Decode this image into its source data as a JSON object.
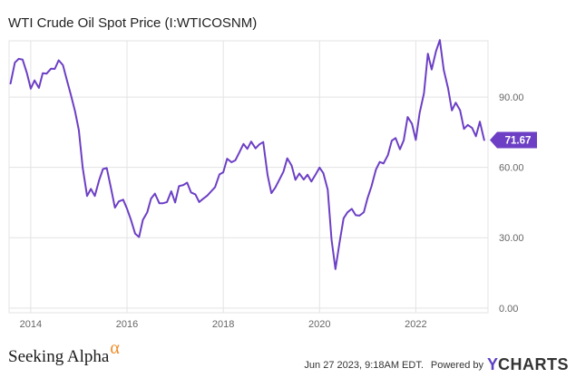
{
  "title": "WTI Crude Oil Spot Price (I:WTICOSNM)",
  "footer": {
    "brand": "Seeking Alpha",
    "brand_mark": "α",
    "timestamp": "Jun 27 2023, 9:18AM EDT.",
    "powered_by": "Powered by",
    "logo_y": "Y",
    "logo_rest": "CHARTS"
  },
  "colors": {
    "line": "#6c3fc5",
    "grid": "#e3e3e3",
    "axis_text": "#666666",
    "last_value_bg": "#6c3fc5"
  },
  "chart_data": {
    "type": "line",
    "title": "WTI Crude Oil Spot Price (I:WTICOSNM)",
    "xlabel": "",
    "ylabel": "",
    "xlim": [
      2013.55,
      2023.5
    ],
    "ylim": [
      -2,
      114
    ],
    "x_ticks": [
      2014,
      2016,
      2018,
      2020,
      2022
    ],
    "x_tick_labels": [
      "2014",
      "2016",
      "2018",
      "2020",
      "2022"
    ],
    "y_ticks": [
      0,
      30,
      60,
      90
    ],
    "y_tick_labels": [
      "0.00",
      "30.00",
      "60.00",
      "90.00"
    ],
    "grid": true,
    "last_value": 71.67,
    "last_value_label": "71.67",
    "series": [
      {
        "x": [
          2013.58,
          2013.67,
          2013.75,
          2013.83,
          2013.92,
          2014.0,
          2014.08,
          2014.17,
          2014.25,
          2014.33,
          2014.42,
          2014.5,
          2014.58,
          2014.67,
          2014.75,
          2014.83,
          2014.92,
          2015.0,
          2015.08,
          2015.17,
          2015.25,
          2015.33,
          2015.42,
          2015.5,
          2015.58,
          2015.67,
          2015.75,
          2015.83,
          2015.92,
          2016.0,
          2016.08,
          2016.17,
          2016.25,
          2016.33,
          2016.42,
          2016.5,
          2016.58,
          2016.67,
          2016.75,
          2016.83,
          2016.92,
          2017.0,
          2017.08,
          2017.17,
          2017.25,
          2017.33,
          2017.42,
          2017.5,
          2017.58,
          2017.67,
          2017.75,
          2017.83,
          2017.92,
          2018.0,
          2018.08,
          2018.17,
          2018.25,
          2018.33,
          2018.42,
          2018.5,
          2018.58,
          2018.67,
          2018.75,
          2018.83,
          2018.92,
          2019.0,
          2019.08,
          2019.17,
          2019.25,
          2019.33,
          2019.42,
          2019.5,
          2019.58,
          2019.67,
          2019.75,
          2019.83,
          2019.92,
          2020.0,
          2020.08,
          2020.17,
          2020.25,
          2020.33,
          2020.42,
          2020.5,
          2020.58,
          2020.67,
          2020.75,
          2020.83,
          2020.92,
          2021.0,
          2021.08,
          2021.17,
          2021.25,
          2021.33,
          2021.42,
          2021.5,
          2021.58,
          2021.67,
          2021.75,
          2021.83,
          2021.92,
          2022.0,
          2022.08,
          2022.17,
          2022.25,
          2022.33,
          2022.42,
          2022.5,
          2022.58,
          2022.67,
          2022.75,
          2022.83,
          2022.92,
          2023.0,
          2023.08,
          2023.17,
          2023.25,
          2023.33,
          2023.42
        ],
        "y": [
          95.8,
          104.7,
          106.3,
          106.0,
          100.3,
          93.6,
          97.1,
          93.9,
          100.2,
          100.0,
          102.1,
          102.0,
          105.7,
          103.6,
          97.3,
          91.3,
          84.0,
          75.9,
          59.8,
          47.8,
          50.8,
          47.8,
          54.4,
          59.3,
          59.7,
          50.9,
          42.8,
          45.5,
          46.2,
          42.4,
          37.7,
          31.7,
          30.3,
          37.6,
          40.8,
          46.7,
          48.8,
          44.7,
          44.7,
          45.2,
          49.8,
          45.0,
          52.0,
          52.5,
          53.5,
          49.3,
          48.5,
          45.2,
          46.6,
          48.0,
          49.8,
          51.6,
          57.0,
          57.9,
          63.7,
          62.2,
          63.0,
          66.3,
          70.0,
          67.9,
          71.0,
          68.1,
          69.8,
          70.8,
          56.7,
          49.0,
          51.4,
          54.9,
          58.2,
          63.9,
          60.8,
          54.7,
          57.4,
          54.8,
          56.9,
          54.0,
          57.0,
          59.9,
          57.5,
          50.5,
          29.2,
          16.6,
          28.6,
          38.3,
          40.8,
          42.3,
          39.6,
          39.4,
          40.9,
          47.0,
          52.0,
          59.0,
          62.3,
          61.7,
          65.2,
          71.4,
          72.5,
          67.7,
          71.6,
          81.5,
          78.6,
          71.7,
          83.2,
          91.6,
          108.5,
          101.8,
          109.6,
          114.3,
          101.6,
          93.7,
          84.3,
          87.6,
          84.4,
          76.4,
          78.1,
          76.8,
          73.3,
          79.5,
          71.67
        ],
        "color": "#6c3fc5"
      }
    ]
  }
}
